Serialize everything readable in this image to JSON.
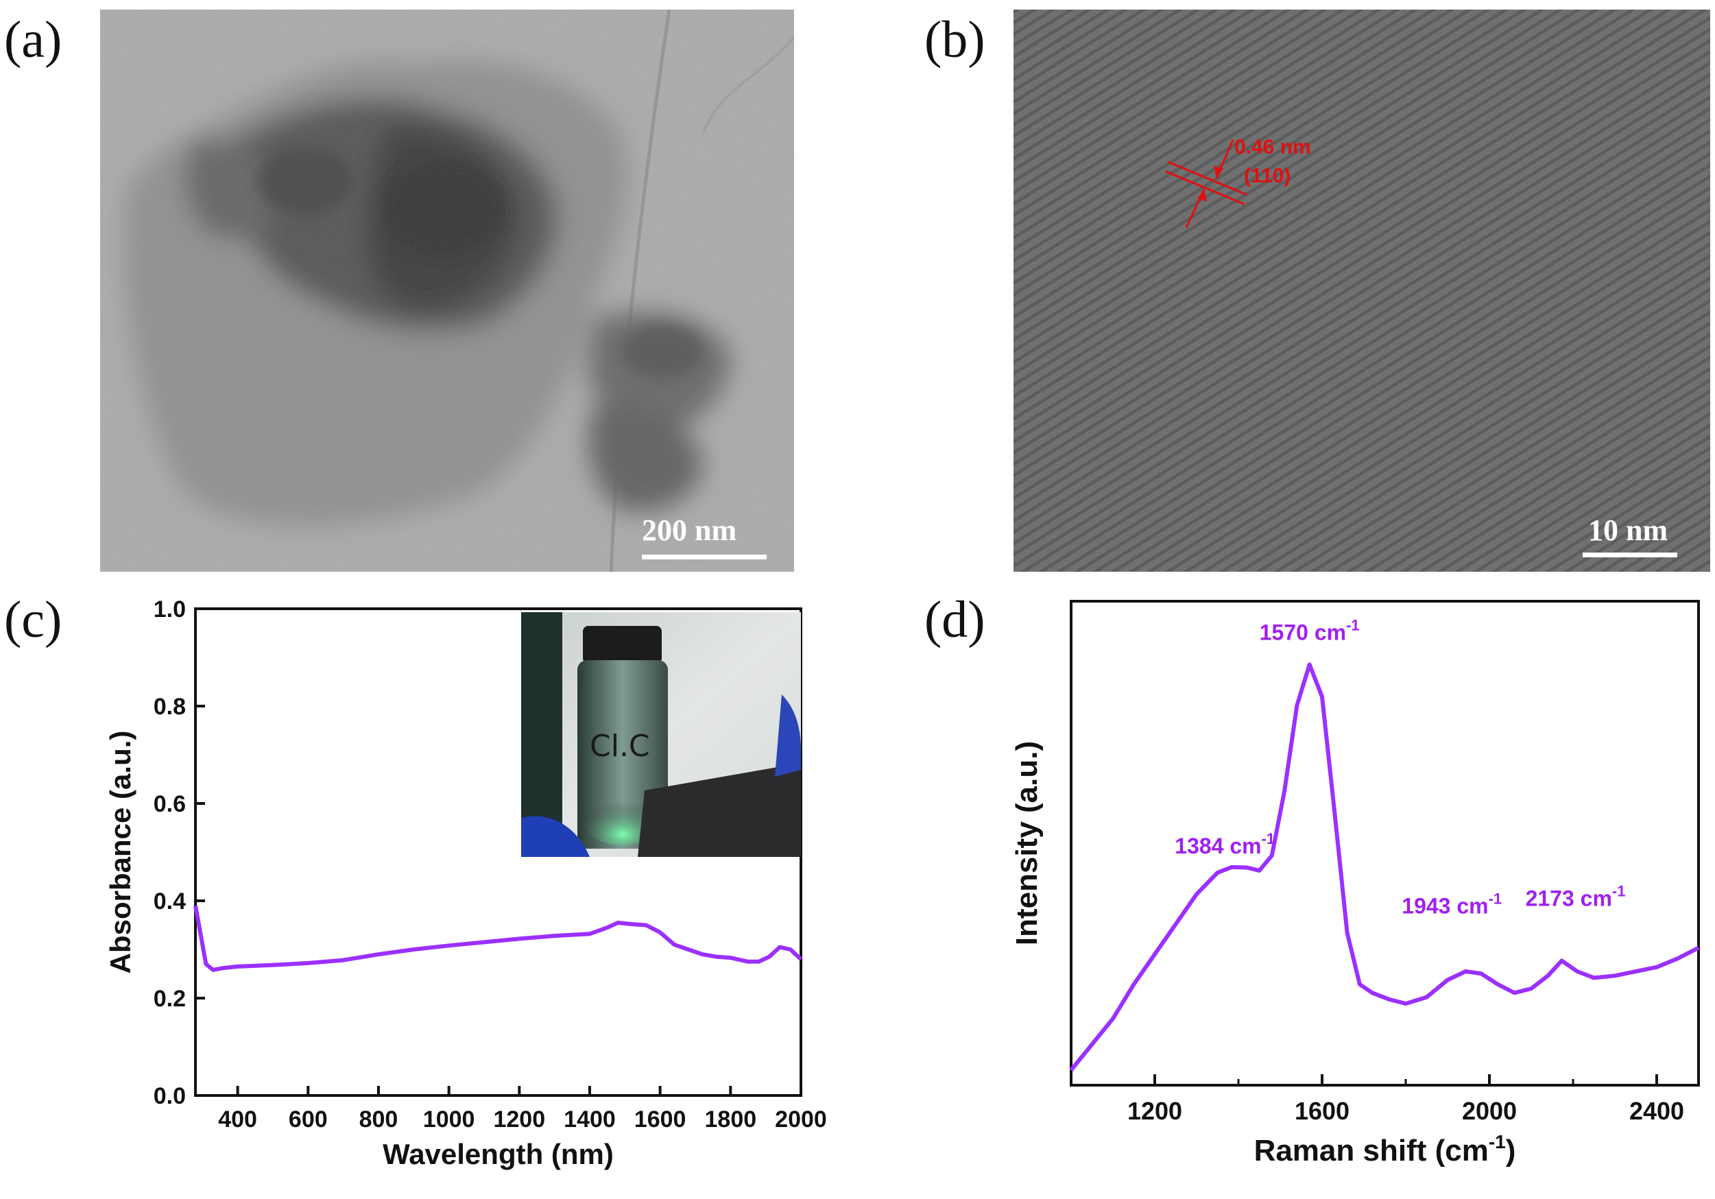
{
  "panels": {
    "a": {
      "letter": "(a)",
      "scalebar": "200 nm"
    },
    "b": {
      "letter": "(b)",
      "scalebar": "10 nm",
      "annotation_spacing": "0.46 nm",
      "annotation_plane": "(110)"
    },
    "c": {
      "letter": "(c)"
    },
    "d": {
      "letter": "(d)"
    }
  },
  "colors": {
    "series": "#9b30ff",
    "annotation_red": "#e01010",
    "annotation_purple": "#a020f0"
  },
  "chart_data": [
    {
      "panel": "c",
      "type": "line",
      "xlabel": "Wavelength (nm)",
      "ylabel": "Absorbance (a.u.)",
      "xlim": [
        280,
        2000
      ],
      "ylim": [
        0,
        1.0
      ],
      "xticks": [
        400,
        600,
        800,
        1000,
        1200,
        1400,
        1600,
        1800,
        2000
      ],
      "yticks": [
        0.0,
        0.2,
        0.4,
        0.6,
        0.8,
        1.0
      ],
      "ytick_labels": [
        "0.0",
        "0.2",
        "0.4",
        "0.6",
        "0.8",
        "1.0"
      ],
      "inset": "photo of glass vial with green laser beam",
      "series": [
        {
          "color": "#9b30ff",
          "x": [
            280,
            295,
            310,
            330,
            360,
            400,
            500,
            600,
            700,
            800,
            900,
            1000,
            1100,
            1200,
            1300,
            1400,
            1450,
            1480,
            1520,
            1560,
            1600,
            1640,
            1680,
            1720,
            1760,
            1800,
            1850,
            1880,
            1910,
            1940,
            1970,
            2000
          ],
          "y": [
            0.39,
            0.33,
            0.27,
            0.258,
            0.262,
            0.265,
            0.268,
            0.272,
            0.278,
            0.29,
            0.3,
            0.308,
            0.315,
            0.322,
            0.328,
            0.332,
            0.345,
            0.355,
            0.352,
            0.35,
            0.335,
            0.31,
            0.3,
            0.29,
            0.285,
            0.283,
            0.275,
            0.275,
            0.285,
            0.305,
            0.3,
            0.28
          ]
        }
      ]
    },
    {
      "panel": "d",
      "type": "line",
      "xlabel": "Raman shift (cm",
      "xlabel_sup": "-1",
      "xlabel_tail": ")",
      "ylabel": "Intensity (a.u.)",
      "xlim": [
        1000,
        2500
      ],
      "ylim": [
        0,
        1
      ],
      "xticks": [
        1200,
        1600,
        2000,
        2400
      ],
      "yticks_shown": false,
      "annotations": [
        {
          "text": "1384 cm",
          "sup": "-1",
          "x": 1384,
          "y": 0.473
        },
        {
          "text": "1570 cm",
          "sup": "-1",
          "x": 1570,
          "y": 0.945
        },
        {
          "text": "1943 cm",
          "sup": "-1",
          "x": 1943,
          "y": 0.32
        },
        {
          "text": "2173 cm",
          "sup": "-1",
          "x": 2173,
          "y": 0.325
        }
      ],
      "series": [
        {
          "color": "#9b30ff",
          "x": [
            1000,
            1050,
            1100,
            1150,
            1200,
            1250,
            1300,
            1350,
            1384,
            1420,
            1450,
            1480,
            1510,
            1540,
            1570,
            1600,
            1630,
            1660,
            1690,
            1720,
            1760,
            1800,
            1850,
            1900,
            1943,
            1980,
            2020,
            2060,
            2100,
            2140,
            2173,
            2210,
            2250,
            2300,
            2350,
            2400,
            2450,
            2500
          ],
          "y": [
            0.0,
            0.06,
            0.12,
            0.2,
            0.27,
            0.34,
            0.41,
            0.46,
            0.473,
            0.472,
            0.465,
            0.5,
            0.65,
            0.85,
            0.945,
            0.87,
            0.6,
            0.32,
            0.2,
            0.18,
            0.165,
            0.155,
            0.17,
            0.21,
            0.23,
            0.225,
            0.2,
            0.18,
            0.19,
            0.22,
            0.255,
            0.23,
            0.215,
            0.22,
            0.23,
            0.24,
            0.26,
            0.285
          ]
        }
      ]
    }
  ]
}
